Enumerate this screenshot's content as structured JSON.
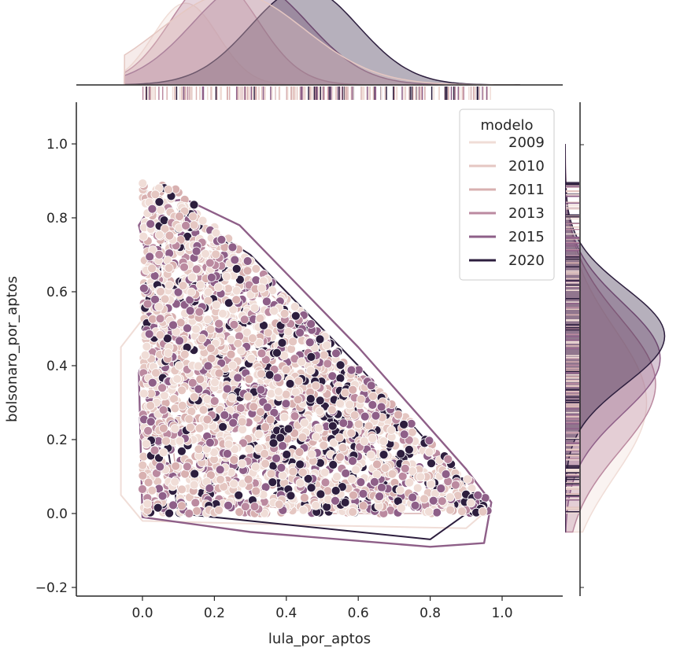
{
  "chart_data": {
    "type": "scatter",
    "plot_kind": "joint plot with bivariate KDE contours, marginal KDE areas and rug marks",
    "xlabel": "lula_por_aptos",
    "ylabel": "bolsonaro_por_aptos",
    "xlim": [
      -0.18,
      1.18
    ],
    "ylim": [
      -0.21,
      1.11
    ],
    "x_ticks": [
      0.0,
      0.2,
      0.4,
      0.6,
      0.8,
      1.0
    ],
    "x_tick_labels": [
      "0.0",
      "0.2",
      "0.4",
      "0.6",
      "0.8",
      "1.0"
    ],
    "y_ticks": [
      -0.2,
      0.0,
      0.2,
      0.4,
      0.6,
      0.8,
      1.0
    ],
    "y_tick_labels": [
      "−0.2",
      "0.0",
      "0.2",
      "0.4",
      "0.6",
      "0.8",
      "1.0"
    ],
    "grid": false,
    "legend": {
      "title": "modelo",
      "placement": "top-right",
      "entries": [
        "2009",
        "2010",
        "2011",
        "2013",
        "2015",
        "2020"
      ]
    },
    "hue_colors": {
      "2009": "#f0ddd7",
      "2010": "#e5c7c2",
      "2011": "#d8b0b0",
      "2013": "#bb8aa0",
      "2015": "#8e5f88",
      "2020": "#2d1e3e"
    },
    "point_region": {
      "description_vertices": [
        [
          0.0,
          0.9
        ],
        [
          0.1,
          0.88
        ],
        [
          0.42,
          0.55
        ],
        [
          0.7,
          0.25
        ],
        [
          0.97,
          0.03
        ],
        [
          0.97,
          0.0
        ],
        [
          0.0,
          0.0
        ]
      ],
      "bulk_x_range": [
        0.03,
        0.97
      ],
      "bulk_y_range": [
        0.0,
        0.9
      ]
    },
    "marginal_x_kde_peak_x": [
      0.2,
      0.35
    ],
    "marginal_y_kde_peak_y": [
      0.4,
      0.5
    ]
  }
}
